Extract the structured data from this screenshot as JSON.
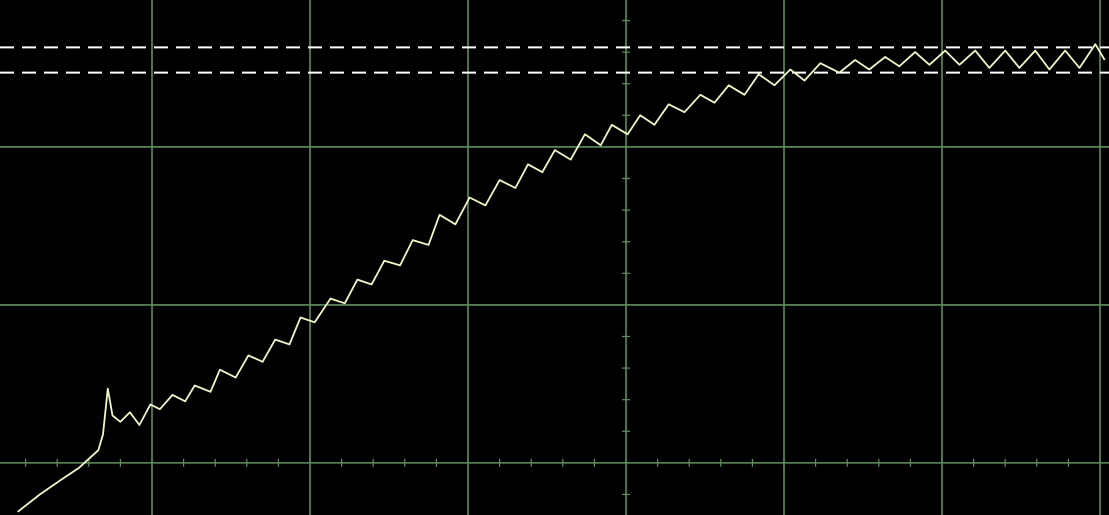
{
  "chart_data": {
    "type": "line",
    "x": [
      -0.85,
      -0.71,
      -0.58,
      -0.46,
      -0.34,
      -0.31,
      -0.28,
      -0.25,
      -0.2,
      -0.14,
      -0.08,
      -0.01,
      0.05,
      0.13,
      0.21,
      0.27,
      0.37,
      0.43,
      0.53,
      0.61,
      0.7,
      0.78,
      0.87,
      0.94,
      1.03,
      1.13,
      1.22,
      1.3,
      1.39,
      1.47,
      1.57,
      1.65,
      1.75,
      1.82,
      1.92,
      2.01,
      2.11,
      2.2,
      2.3,
      2.38,
      2.47,
      2.55,
      2.65,
      2.74,
      2.84,
      2.91,
      3.01,
      3.09,
      3.18,
      3.27,
      3.37,
      3.47,
      3.56,
      3.65,
      3.75,
      3.84,
      3.94,
      4.04,
      4.13,
      4.23,
      4.35,
      4.45,
      4.54,
      4.64,
      4.73,
      4.83,
      4.92,
      5.02,
      5.11,
      5.21,
      5.3,
      5.4,
      5.49,
      5.59,
      5.68,
      5.78,
      5.87,
      5.97,
      6.03
    ],
    "values": [
      -0.31,
      -0.2,
      -0.11,
      -0.03,
      0.08,
      0.18,
      0.47,
      0.3,
      0.26,
      0.32,
      0.24,
      0.37,
      0.34,
      0.43,
      0.39,
      0.49,
      0.45,
      0.59,
      0.54,
      0.68,
      0.64,
      0.78,
      0.75,
      0.92,
      0.89,
      1.04,
      1.01,
      1.16,
      1.13,
      1.28,
      1.25,
      1.41,
      1.38,
      1.57,
      1.51,
      1.68,
      1.63,
      1.79,
      1.74,
      1.89,
      1.84,
      1.98,
      1.92,
      2.08,
      2.01,
      2.14,
      2.08,
      2.2,
      2.14,
      2.27,
      2.22,
      2.33,
      2.28,
      2.39,
      2.33,
      2.46,
      2.39,
      2.49,
      2.42,
      2.53,
      2.47,
      2.55,
      2.49,
      2.57,
      2.51,
      2.6,
      2.52,
      2.61,
      2.52,
      2.61,
      2.5,
      2.61,
      2.5,
      2.61,
      2.49,
      2.61,
      2.5,
      2.65,
      2.55
    ],
    "color": "#f2f5c8",
    "cursors": [
      2.63,
      2.47
    ],
    "cursor_color": "#ffffff",
    "xlim": [
      -0.962,
      6.057
    ],
    "ylim": [
      -0.33,
      2.93
    ],
    "xticks": [
      0,
      1,
      2,
      3,
      4,
      5,
      6
    ],
    "yticks": [
      0,
      1,
      2
    ],
    "grid": true,
    "grid_color": "#5f8f5f",
    "center_axes": {
      "x": 3,
      "y": 0
    },
    "minor_ticks_per_division": 5
  }
}
